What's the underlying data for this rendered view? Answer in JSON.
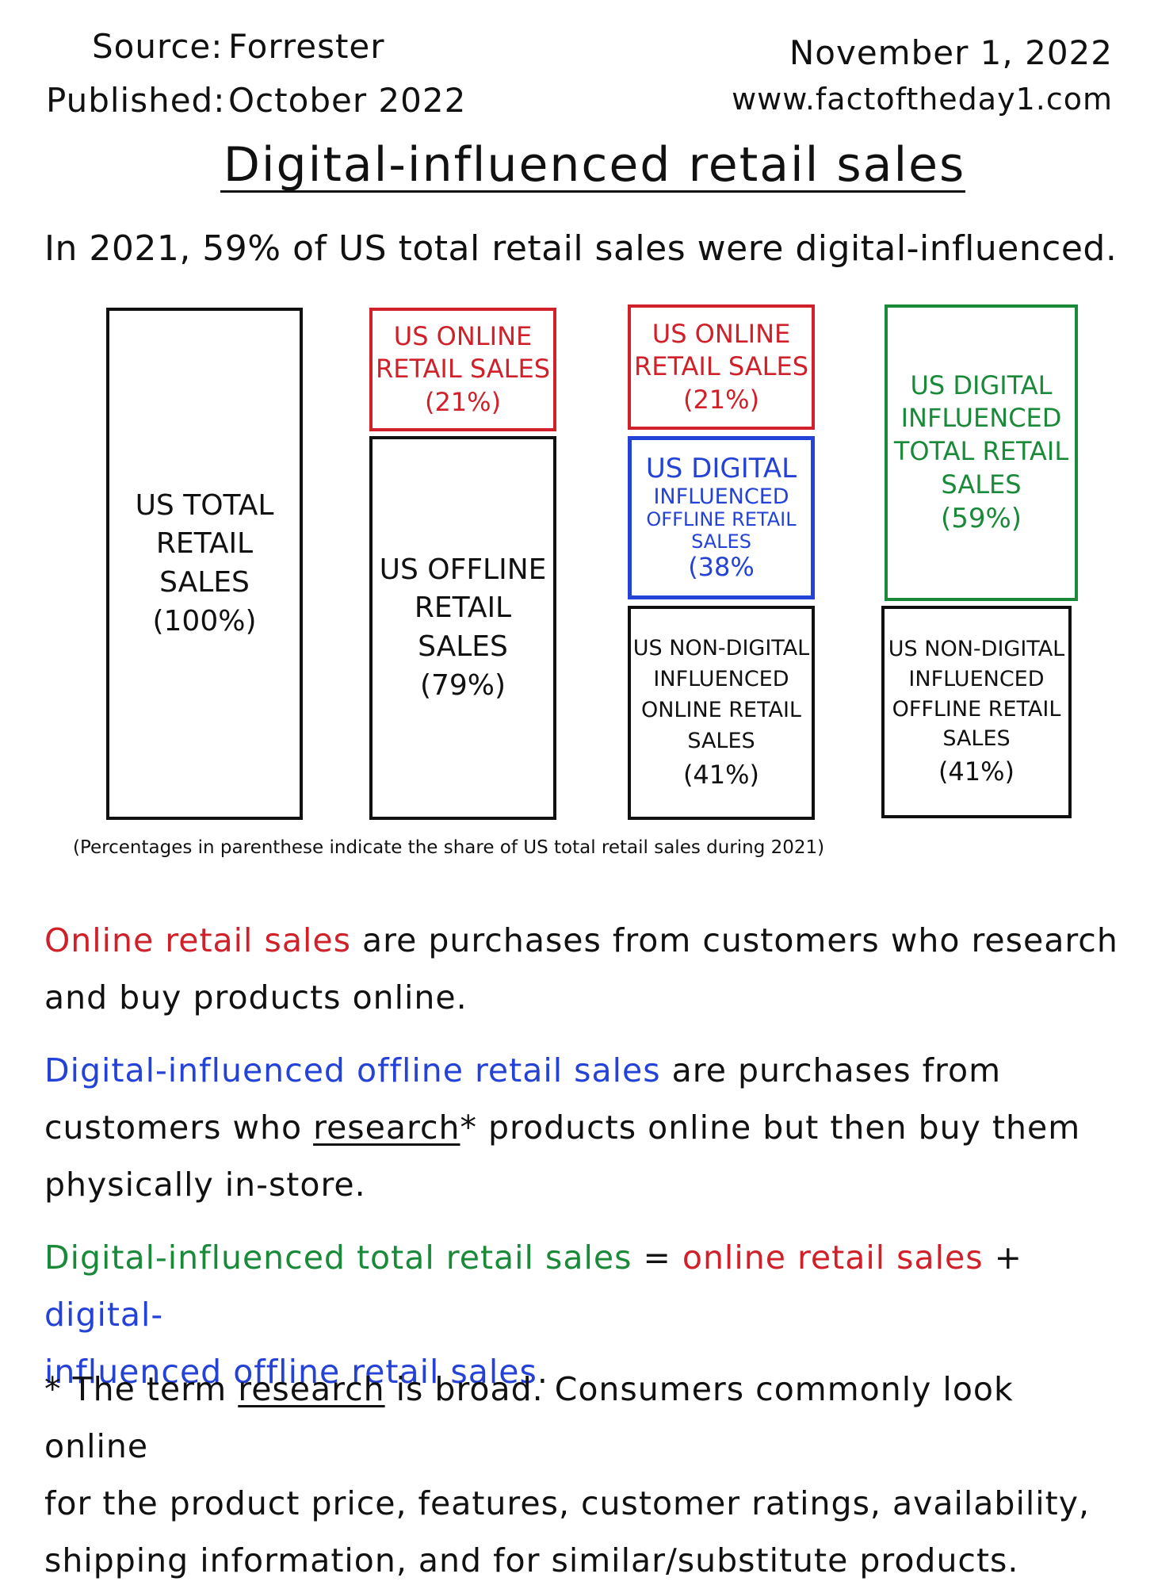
{
  "header": {
    "source_label": "Source:",
    "source_value": "Forrester",
    "published_label": "Published:",
    "published_value": "October 2022",
    "date": "November 1, 2022",
    "website": "www.factoftheday1.com"
  },
  "title": "Digital-influenced retail sales",
  "lead": "In 2021, 59% of US total retail sales were digital-influenced.",
  "diagram": {
    "col1": {
      "line1": "US TOTAL",
      "line2": "RETAIL",
      "line3": "SALES",
      "pct": "(100%)"
    },
    "col2_top": {
      "line1": "US ONLINE",
      "line2": "RETAIL SALES",
      "pct": "(21%)"
    },
    "col2_bottom": {
      "line1": "US OFFLINE",
      "line2": "RETAIL",
      "line3": "SALES",
      "pct": "(79%)"
    },
    "col3_top": {
      "line1": "US ONLINE",
      "line2": "RETAIL SALES",
      "pct": "(21%)"
    },
    "col3_mid": {
      "line1": "US DIGITAL",
      "line2": "INFLUENCED",
      "line3": "OFFLINE RETAIL",
      "line4": "SALES",
      "pct": "(38%"
    },
    "col3_bottom": {
      "line1": "US NON-DIGITAL",
      "line2": "INFLUENCED",
      "line3": "ONLINE RETAIL",
      "line4": "SALES",
      "pct": "(41%)"
    },
    "col4_top": {
      "line1": "US DIGITAL",
      "line2": "INFLUENCED",
      "line3": "TOTAL RETAIL",
      "line4": "SALES",
      "pct": "(59%)"
    },
    "col4_bottom": {
      "line1": "US NON-DIGITAL",
      "line2": "INFLUENCED",
      "line3": "OFFLINE RETAIL",
      "line4": "SALES",
      "pct": "(41%)"
    },
    "values": {
      "total": 100,
      "online": 21,
      "offline": 79,
      "digital_offline": 38,
      "digital_total": 59,
      "non_digital": 41
    },
    "colors": {
      "online": "#d0202a",
      "digital_offline": "#2443d6",
      "digital_total": "#1a8a3a",
      "neutral": "#111111"
    }
  },
  "note": "(Percentages in parenthese indicate the share of US total retail sales during 2021)",
  "definitions": {
    "online_term": "Online retail sales",
    "online_rest1": " are purchases from customers who research",
    "online_rest2": "and buy products online.",
    "dig_off_term": "Digital-influenced offline retail sales",
    "dig_off_rest1": " are purchases from",
    "dig_off_rest2a": "customers who ",
    "dig_off_research": "research",
    "dig_off_rest2b": "* products online but then buy them",
    "dig_off_rest3": "physically in-store.",
    "eq_left": "Digital-influenced total retail sales",
    "eq_equals": " = ",
    "eq_online": "online retail sales",
    "eq_plus": " + ",
    "eq_dig1": "digital-",
    "eq_dig2": "influenced offline retail sales",
    "eq_period": ".",
    "footnote_star": "* The term ",
    "footnote_research": "research",
    "footnote_rest1": " is broad. Consumers commonly look online",
    "footnote_rest2": "for the product price, features, customer ratings, availability,",
    "footnote_rest3": "shipping information, and for similar/substitute products."
  }
}
